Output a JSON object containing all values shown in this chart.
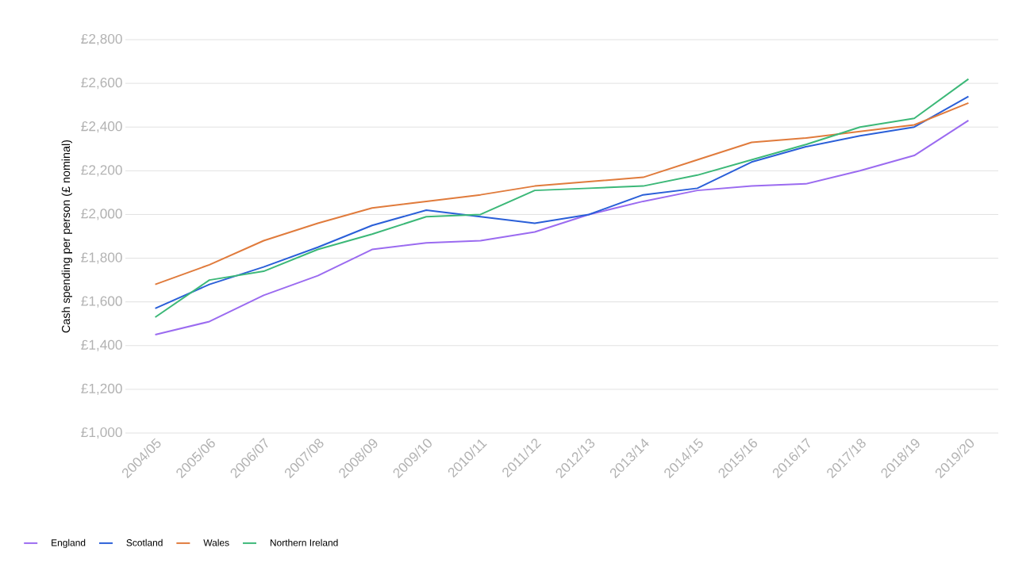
{
  "chart_data": {
    "type": "line",
    "ylabel": "Cash spending per person (£ nominal)",
    "categories": [
      "2004/05",
      "2005/06",
      "2006/07",
      "2007/08",
      "2008/09",
      "2009/10",
      "2010/11",
      "2011/12",
      "2012/13",
      "2013/14",
      "2014/15",
      "2015/16",
      "2016/17",
      "2017/18",
      "2018/19",
      "2019/20"
    ],
    "series": [
      {
        "name": "England",
        "color": "#9b6bf0",
        "values": [
          1450,
          1510,
          1630,
          1720,
          1840,
          1870,
          1880,
          1920,
          2000,
          2060,
          2110,
          2130,
          2140,
          2200,
          2270,
          2430
        ]
      },
      {
        "name": "Scotland",
        "color": "#2a5fd8",
        "values": [
          1570,
          1680,
          1760,
          1850,
          1950,
          2020,
          1990,
          1960,
          2000,
          2090,
          2120,
          2240,
          2310,
          2360,
          2400,
          2540
        ]
      },
      {
        "name": "Wales",
        "color": "#e07b3c",
        "values": [
          1680,
          1770,
          1880,
          1960,
          2030,
          2060,
          2090,
          2130,
          2150,
          2170,
          2250,
          2330,
          2350,
          2380,
          2410,
          2510
        ]
      },
      {
        "name": "Northern Ireland",
        "color": "#3cb878",
        "values": [
          1530,
          1700,
          1740,
          1840,
          1910,
          1990,
          2000,
          2110,
          2120,
          2130,
          2180,
          2250,
          2320,
          2400,
          2440,
          2620
        ]
      }
    ],
    "ylim": [
      1000,
      2800
    ],
    "yticks": [
      {
        "value": 1000,
        "label": "£1,000"
      },
      {
        "value": 1200,
        "label": "£1,200"
      },
      {
        "value": 1400,
        "label": "£1,400"
      },
      {
        "value": 1600,
        "label": "£1,600"
      },
      {
        "value": 1800,
        "label": "£1,800"
      },
      {
        "value": 2000,
        "label": "£2,000"
      },
      {
        "value": 2200,
        "label": "£2,200"
      },
      {
        "value": 2400,
        "label": "£2,400"
      },
      {
        "value": 2600,
        "label": "£2,600"
      },
      {
        "value": 2800,
        "label": "£2,800"
      }
    ],
    "grid": "y",
    "legend": "bottom",
    "marker": "none",
    "line_style": "solid"
  }
}
